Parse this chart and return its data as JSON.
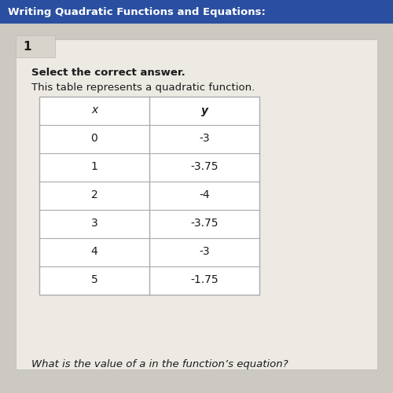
{
  "header_bar_color": "#2b4fa0",
  "header_text": "Writing Quadratic Functions and Equations:",
  "header_text_color": "#ffffff",
  "header_fontsize": 9.5,
  "question_number": "1",
  "bg_color": "#ccc9c2",
  "card_bg_color": "#edeae4",
  "prompt1": "Select the correct answer.",
  "prompt2": "This table represents a quadratic function.",
  "bottom_text": "What is the value of a in the function’s equation?",
  "table_headers": [
    "x",
    "y"
  ],
  "table_data": [
    [
      "0",
      "-3"
    ],
    [
      "1",
      "-3.75"
    ],
    [
      "2",
      "-4"
    ],
    [
      "3",
      "-3.75"
    ],
    [
      "4",
      "-3"
    ],
    [
      "5",
      "-1.75"
    ]
  ],
  "table_bg_color": "#ffffff",
  "table_border_color": "#aaaaaa",
  "text_color": "#1a1a1a",
  "prompt_fontsize": 9.5,
  "table_fontsize": 10,
  "qnum_fontsize": 11
}
